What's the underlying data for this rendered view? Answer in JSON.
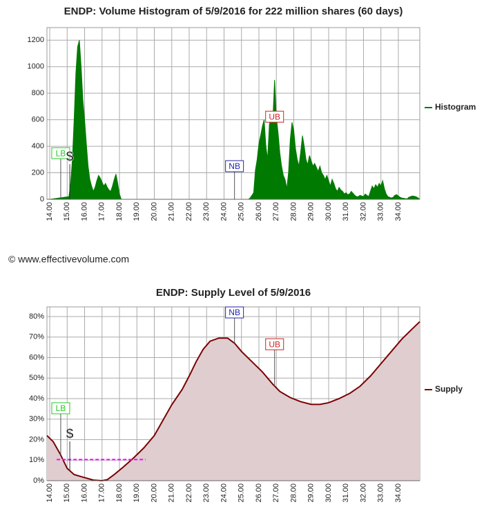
{
  "copyright": "© www.effectivevolume.com",
  "chart_data": [
    {
      "type": "area",
      "title": "ENDP: Volume Histogram of 5/9/2016 for 222 million shares (60 days)",
      "legend": "right",
      "grid": true,
      "x": [
        14,
        15.1,
        15.2,
        15.3,
        15.4,
        15.5,
        15.6,
        15.7,
        15.8,
        15.9,
        16,
        16.1,
        16.2,
        16.3,
        16.4,
        16.5,
        16.6,
        16.7,
        16.8,
        16.9,
        17,
        17.1,
        17.2,
        17.3,
        17.4,
        17.5,
        17.6,
        17.7,
        17.8,
        17.9,
        18,
        18.1,
        25.4,
        25.5,
        25.6,
        25.7,
        25.8,
        25.9,
        26,
        26.1,
        26.2,
        26.3,
        26.4,
        26.5,
        26.6,
        26.7,
        26.8,
        26.9,
        27,
        27.1,
        27.2,
        27.3,
        27.4,
        27.5,
        27.6,
        27.7,
        27.8,
        27.9,
        28,
        28.1,
        28.2,
        28.3,
        28.4,
        28.5,
        28.6,
        28.7,
        28.8,
        28.9,
        29,
        29.1,
        29.2,
        29.3,
        29.4,
        29.5,
        29.6,
        29.7,
        29.8,
        29.9,
        30,
        30.1,
        30.2,
        30.3,
        30.4,
        30.5,
        30.6,
        30.7,
        30.8,
        30.9,
        31,
        31.1,
        31.2,
        31.3,
        31.4,
        31.5,
        31.6,
        31.7,
        31.8,
        31.9,
        32,
        32.1,
        32.2,
        32.3,
        32.4,
        32.5,
        32.6,
        32.7,
        32.8,
        32.9,
        33,
        33.1,
        33.2,
        33.3,
        33.4,
        33.5,
        33.6,
        33.7,
        33.8,
        33.9,
        34,
        34.1,
        34.2,
        34.3,
        34.4,
        34.5,
        34.6,
        34.8,
        35,
        35.2
      ],
      "series": [
        {
          "name": "Histogram",
          "color": "#007a00",
          "values": [
            0,
            20,
            120,
            300,
            600,
            950,
            1150,
            1200,
            1000,
            750,
            600,
            420,
            250,
            150,
            100,
            60,
            90,
            140,
            180,
            160,
            130,
            100,
            120,
            90,
            70,
            60,
            100,
            150,
            190,
            120,
            40,
            0,
            0,
            10,
            30,
            50,
            220,
            300,
            420,
            480,
            550,
            600,
            400,
            300,
            560,
            650,
            600,
            900,
            620,
            500,
            350,
            250,
            180,
            150,
            80,
            200,
            450,
            580,
            520,
            380,
            300,
            250,
            360,
            480,
            400,
            300,
            260,
            330,
            290,
            250,
            270,
            240,
            210,
            250,
            200,
            180,
            150,
            180,
            140,
            100,
            150,
            120,
            80,
            60,
            90,
            70,
            60,
            40,
            50,
            35,
            40,
            60,
            45,
            30,
            20,
            20,
            30,
            25,
            20,
            40,
            30,
            20,
            60,
            100,
            80,
            110,
            90,
            120,
            100,
            140,
            80,
            40,
            20,
            15,
            10,
            15,
            30,
            35,
            25,
            15,
            10,
            8,
            5,
            3,
            15,
            25,
            20,
            5
          ]
        }
      ],
      "xlim": [
        13.84,
        35.23
      ],
      "xticks": [
        {
          "value": 14,
          "label": "14.00"
        },
        {
          "value": 15,
          "label": "15.00"
        },
        {
          "value": 16,
          "label": "16.00"
        },
        {
          "value": 17,
          "label": "17.00"
        },
        {
          "value": 18,
          "label": "18.00"
        },
        {
          "value": 19,
          "label": "19.00"
        },
        {
          "value": 20,
          "label": "20.00"
        },
        {
          "value": 21,
          "label": "21.00"
        },
        {
          "value": 22,
          "label": "22.00"
        },
        {
          "value": 23,
          "label": "23.00"
        },
        {
          "value": 24,
          "label": "24.00"
        },
        {
          "value": 25,
          "label": "25.00"
        },
        {
          "value": 26,
          "label": "26.00"
        },
        {
          "value": 27,
          "label": "27.00"
        },
        {
          "value": 28,
          "label": "28.00"
        },
        {
          "value": 29,
          "label": "29.00"
        },
        {
          "value": 30,
          "label": "30.00"
        },
        {
          "value": 31,
          "label": "31.00"
        },
        {
          "value": 32,
          "label": "32.00"
        },
        {
          "value": 33,
          "label": "33.00"
        },
        {
          "value": 34,
          "label": "34.00"
        }
      ],
      "ylim": [
        0,
        1295
      ],
      "yticks": [
        0,
        200,
        400,
        600,
        800,
        1000,
        1200
      ],
      "annotations": [
        {
          "label": "LB",
          "x": 14.63,
          "y": 348,
          "to": 0,
          "color": "#22cc22"
        },
        {
          "label": "$",
          "x": 15.15,
          "y": 317,
          "to": 0
        },
        {
          "label": "NB",
          "x": 24.6,
          "y": 250,
          "to": 0,
          "color": "#2222aa"
        },
        {
          "label": "UB",
          "x": 26.9,
          "y": 623,
          "to": 600,
          "color": "#cc2222"
        }
      ]
    },
    {
      "type": "area",
      "title": "ENDP: Supply Level of 5/9/2016",
      "legend": "right",
      "grid": true,
      "x": [
        13.84,
        14.2,
        14.6,
        15,
        15.4,
        16,
        16.5,
        17,
        17.3,
        17.7,
        18.2,
        18.8,
        19.4,
        20,
        20.6,
        21,
        21.6,
        22,
        22.4,
        22.8,
        23.2,
        23.7,
        24.2,
        24.6,
        25,
        25.6,
        26.2,
        26.8,
        27.2,
        27.8,
        28.4,
        29,
        29.5,
        30,
        30.6,
        31.2,
        31.8,
        32.4,
        33,
        33.6,
        34.2,
        34.8,
        35.23
      ],
      "series": [
        {
          "name": "Supply",
          "color": "#7a0000",
          "fill": "#dfcdd0",
          "values": [
            22,
            19,
            13,
            6,
            3,
            1.5,
            0.3,
            0,
            0.5,
            3,
            6.5,
            11,
            16,
            22,
            31,
            37,
            44.5,
            51,
            58,
            64,
            68,
            69.5,
            69.5,
            67,
            63,
            58,
            53,
            47,
            43.5,
            40.5,
            38.5,
            37.2,
            37.2,
            38,
            40,
            42.5,
            46,
            51,
            57,
            63,
            69,
            74,
            77.5
          ]
        }
      ],
      "xlim": [
        13.84,
        35.23
      ],
      "xticks": [
        {
          "value": 14,
          "label": "14.00"
        },
        {
          "value": 15,
          "label": "15.00"
        },
        {
          "value": 16,
          "label": "16.00"
        },
        {
          "value": 17,
          "label": "17.00"
        },
        {
          "value": 18,
          "label": "18.00"
        },
        {
          "value": 19,
          "label": "19.00"
        },
        {
          "value": 20,
          "label": "20.00"
        },
        {
          "value": 21,
          "label": "21.00"
        },
        {
          "value": 22,
          "label": "22.00"
        },
        {
          "value": 23,
          "label": "23.00"
        },
        {
          "value": 24,
          "label": "24.00"
        },
        {
          "value": 25,
          "label": "25.00"
        },
        {
          "value": 26,
          "label": "26.00"
        },
        {
          "value": 27,
          "label": "27.00"
        },
        {
          "value": 28,
          "label": "28.00"
        },
        {
          "value": 29,
          "label": "29.00"
        },
        {
          "value": 30,
          "label": "30.00"
        },
        {
          "value": 31,
          "label": "31.00"
        },
        {
          "value": 32,
          "label": "32.00"
        },
        {
          "value": 33,
          "label": "33.00"
        },
        {
          "value": 34,
          "label": "34.00"
        }
      ],
      "ylim": [
        0,
        84.7
      ],
      "yticks": [
        {
          "value": 0,
          "label": "0%"
        },
        {
          "value": 10,
          "label": "10%"
        },
        {
          "value": 20,
          "label": "20%"
        },
        {
          "value": 30,
          "label": "30%"
        },
        {
          "value": 40,
          "label": "40%"
        },
        {
          "value": 50,
          "label": "50%"
        },
        {
          "value": 60,
          "label": "60%"
        },
        {
          "value": 70,
          "label": "70%"
        },
        {
          "value": 80,
          "label": "80%"
        }
      ],
      "reference_line": {
        "value": 10.3,
        "x": [
          14.4,
          19.5
        ],
        "color": "#ff00ff"
      },
      "annotations": [
        {
          "label": "LB",
          "x": 14.63,
          "y": 35.3,
          "to": 12.5,
          "color": "#22cc22"
        },
        {
          "label": "$",
          "x": 15.15,
          "y": 22.5,
          "to": 5
        },
        {
          "label": "NB",
          "x": 24.6,
          "y": 82,
          "to": 67,
          "color": "#2222aa"
        },
        {
          "label": "UB",
          "x": 26.9,
          "y": 66.5,
          "to": 46,
          "color": "#cc2222"
        }
      ]
    }
  ]
}
